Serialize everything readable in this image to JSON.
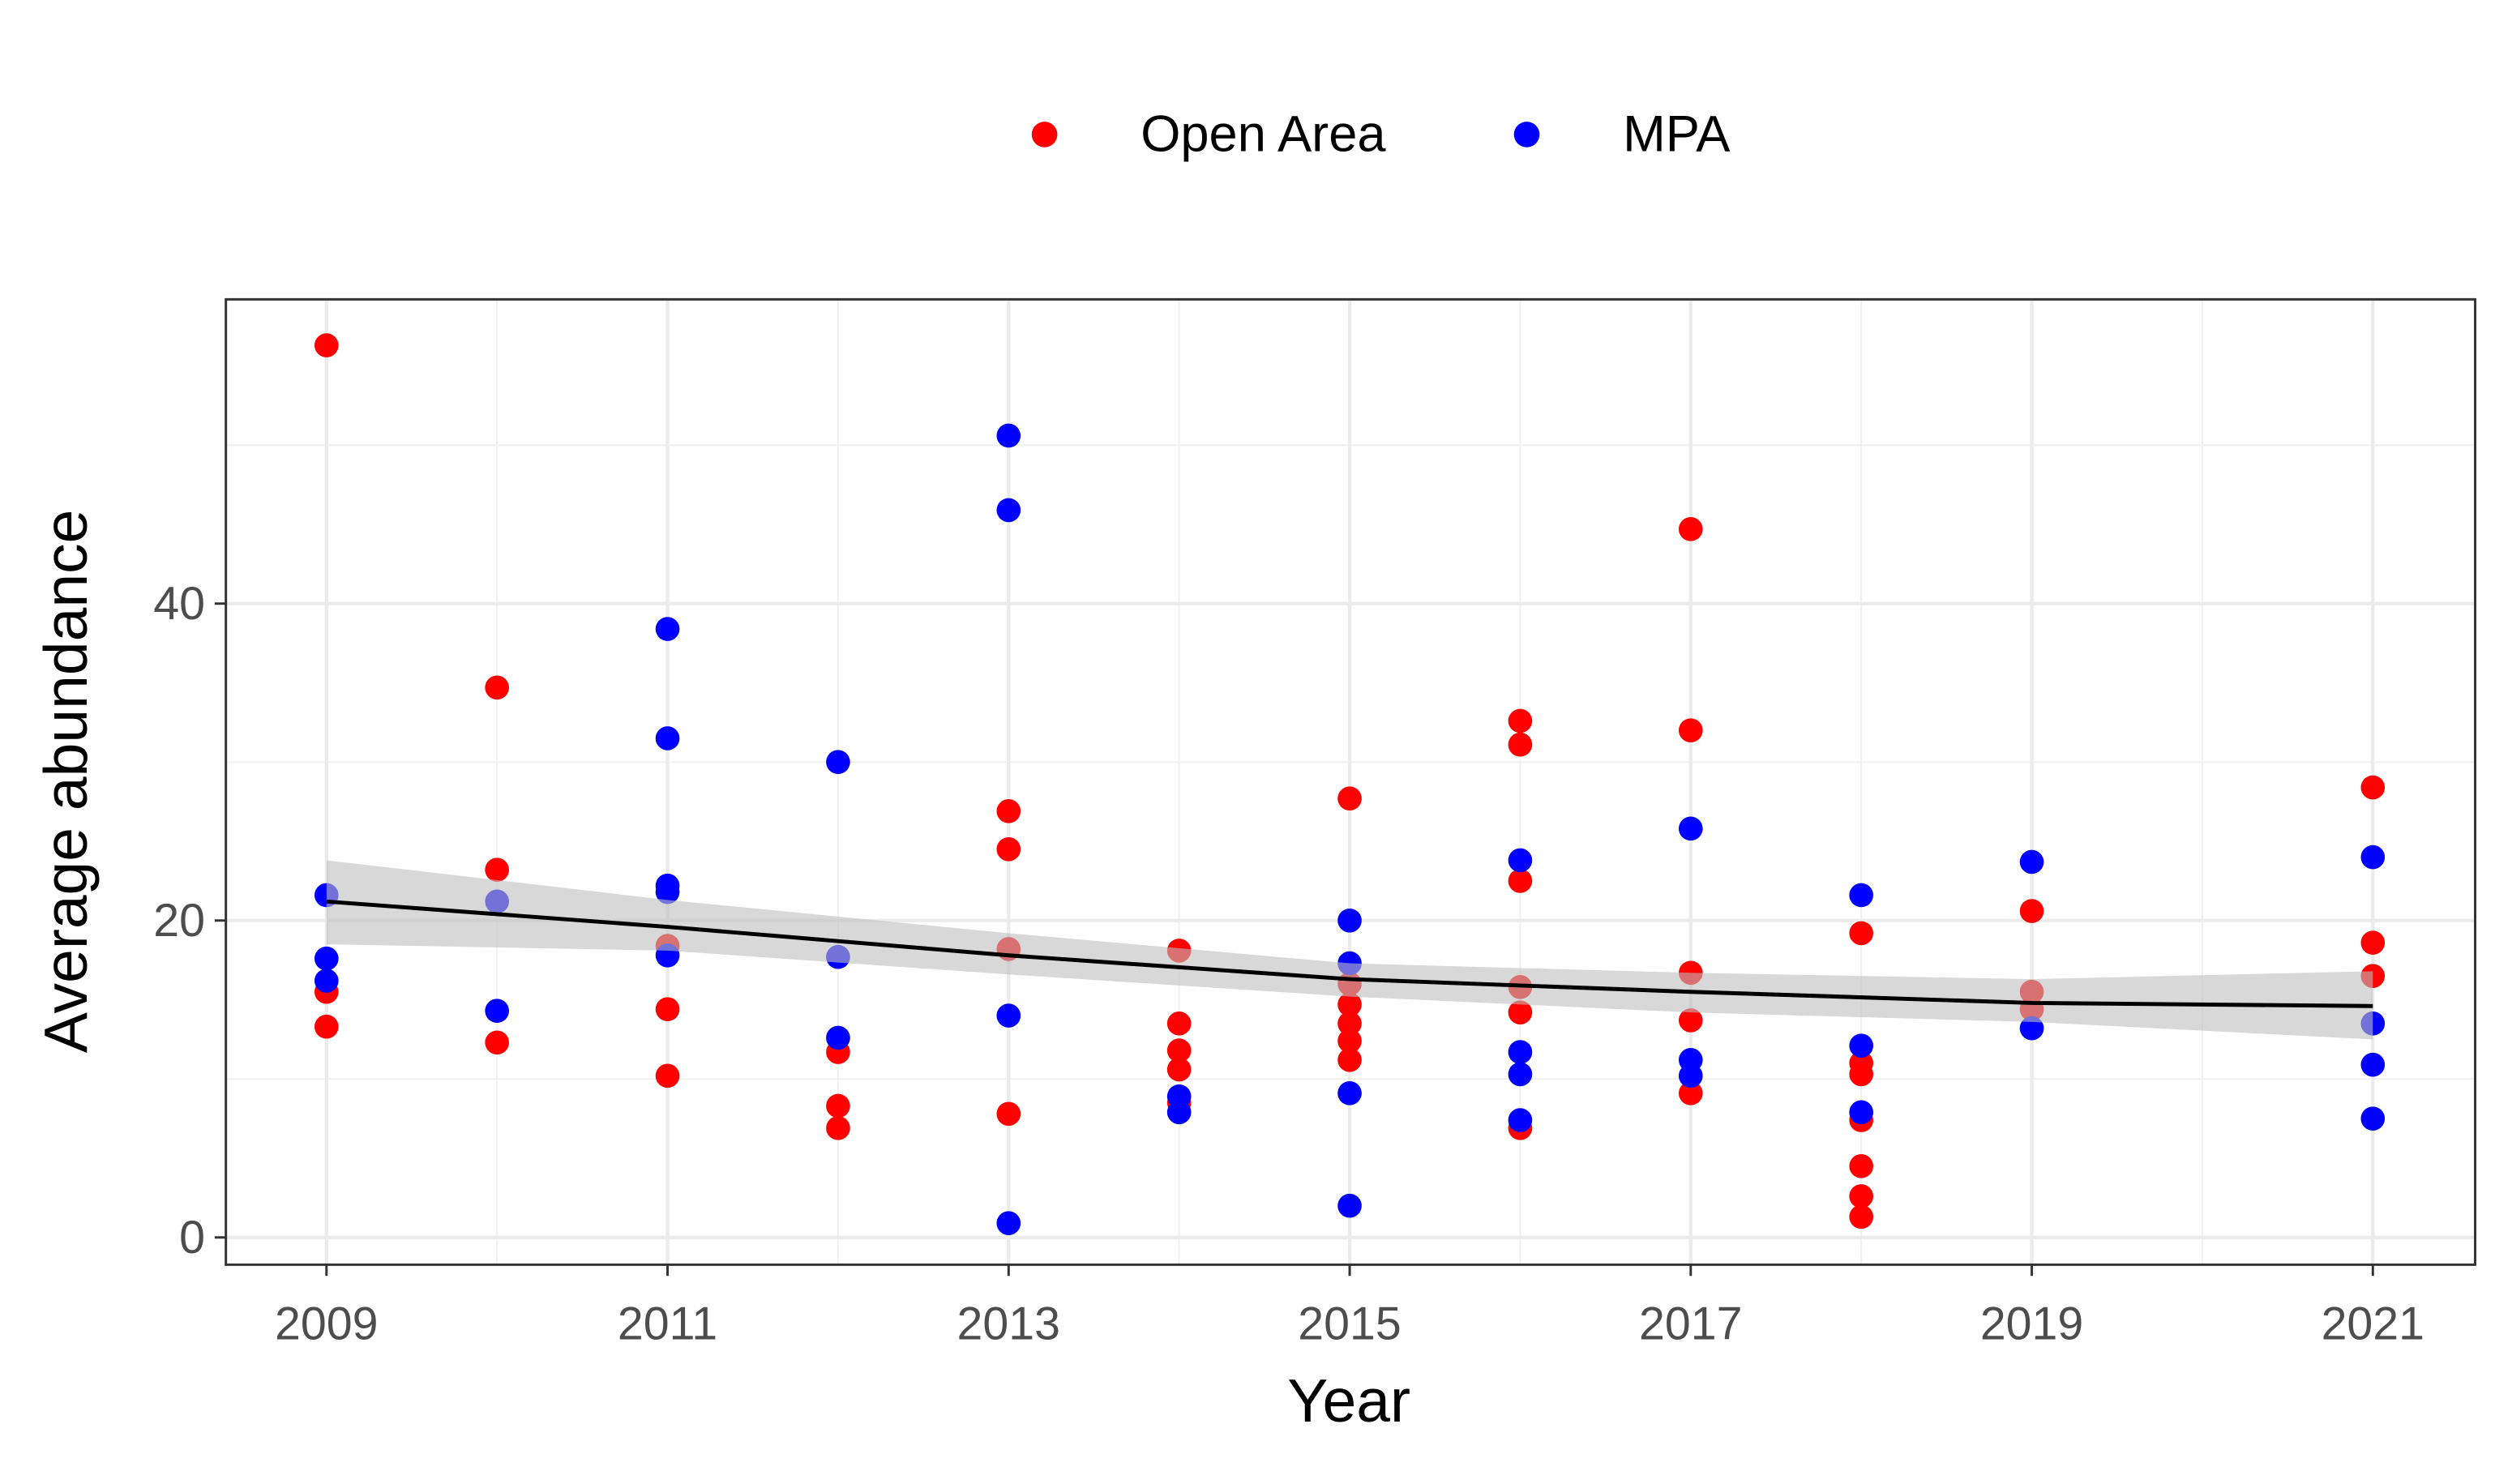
{
  "chart_data": {
    "type": "scatter",
    "x_label": "Year",
    "y_label": "Average abundance",
    "xlim": [
      2008.41,
      2021.6
    ],
    "ylim": [
      -1.72,
      59.2
    ],
    "xticks": [
      2009,
      2011,
      2013,
      2015,
      2017,
      2019,
      2021
    ],
    "yticks": [
      0,
      20,
      40
    ],
    "grid": true,
    "legend": "top",
    "series": [
      {
        "name": "Open Area",
        "color": "#ff0000",
        "x": [
          2009,
          2009,
          2009,
          2010,
          2010,
          2010,
          2011,
          2011,
          2011,
          2012,
          2012,
          2012,
          2013,
          2013,
          2013,
          2013,
          2014,
          2014,
          2014,
          2014,
          2014,
          2015,
          2015,
          2015,
          2015,
          2015,
          2015,
          2016,
          2016,
          2016,
          2016,
          2016,
          2016,
          2017,
          2017,
          2017,
          2017,
          2017,
          2018,
          2018,
          2018,
          2018,
          2018,
          2018,
          2018,
          2019,
          2019,
          2019,
          2021,
          2021,
          2021
        ],
        "values": [
          56.3,
          15.5,
          13.3,
          34.7,
          23.2,
          12.3,
          18.4,
          14.4,
          10.2,
          11.7,
          8.3,
          6.9,
          26.9,
          24.5,
          18.2,
          7.8,
          18.1,
          13.5,
          11.8,
          10.6,
          8.5,
          27.7,
          16.0,
          14.7,
          13.5,
          12.4,
          11.2,
          32.6,
          31.1,
          22.5,
          15.8,
          14.2,
          6.9,
          44.7,
          32.0,
          16.7,
          13.7,
          9.1,
          19.2,
          11.0,
          10.3,
          7.4,
          4.5,
          2.6,
          1.3,
          20.6,
          15.5,
          14.4,
          28.4,
          18.6,
          16.5
        ]
      },
      {
        "name": "MPA",
        "color": "#0000ff",
        "x": [
          2009,
          2009,
          2009,
          2010,
          2010,
          2011,
          2011,
          2011,
          2011,
          2011,
          2012,
          2012,
          2012,
          2013,
          2013,
          2013,
          2013,
          2014,
          2014,
          2015,
          2015,
          2015,
          2015,
          2016,
          2016,
          2016,
          2016,
          2017,
          2017,
          2017,
          2018,
          2018,
          2018,
          2019,
          2019,
          2021,
          2021,
          2021,
          2021
        ],
        "values": [
          21.6,
          17.6,
          16.2,
          21.2,
          14.3,
          38.4,
          31.5,
          22.2,
          21.8,
          17.8,
          30.0,
          17.7,
          12.6,
          50.6,
          45.9,
          14.0,
          0.9,
          8.9,
          7.9,
          20.0,
          17.3,
          9.1,
          2.0,
          23.8,
          11.7,
          10.3,
          7.4,
          25.8,
          11.2,
          10.2,
          21.6,
          12.1,
          7.9,
          23.7,
          13.2,
          24.0,
          13.5,
          10.9,
          7.5
        ]
      }
    ],
    "fit": {
      "color": "#000000",
      "band_color": "#bebebe",
      "x": [
        2009,
        2011,
        2013,
        2015,
        2017,
        2019,
        2021
      ],
      "values": [
        21.2,
        19.6,
        17.8,
        16.3,
        15.5,
        14.8,
        14.6
      ],
      "lower": [
        18.5,
        18.1,
        16.6,
        15.2,
        14.2,
        13.6,
        12.5
      ],
      "upper": [
        23.8,
        21.3,
        19.2,
        17.3,
        16.7,
        16.3,
        16.8
      ]
    }
  }
}
